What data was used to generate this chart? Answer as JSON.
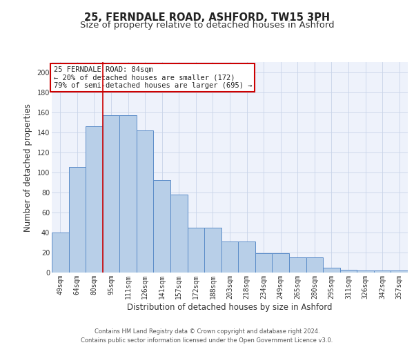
{
  "title1": "25, FERNDALE ROAD, ASHFORD, TW15 3PH",
  "title2": "Size of property relative to detached houses in Ashford",
  "xlabel": "Distribution of detached houses by size in Ashford",
  "ylabel": "Number of detached properties",
  "categories": [
    "49sqm",
    "64sqm",
    "80sqm",
    "95sqm",
    "111sqm",
    "126sqm",
    "141sqm",
    "157sqm",
    "172sqm",
    "188sqm",
    "203sqm",
    "218sqm",
    "234sqm",
    "249sqm",
    "265sqm",
    "280sqm",
    "295sqm",
    "311sqm",
    "326sqm",
    "342sqm",
    "357sqm"
  ],
  "values": [
    40,
    105,
    146,
    157,
    157,
    142,
    92,
    78,
    45,
    45,
    31,
    31,
    19,
    19,
    15,
    15,
    5,
    3,
    2,
    2,
    2
  ],
  "bar_color": "#b8cfe8",
  "bar_edge_color": "#5b8cc8",
  "background_color": "#eef2fb",
  "annotation_box_text": "25 FERNDALE ROAD: 84sqm\n← 20% of detached houses are smaller (172)\n79% of semi-detached houses are larger (695) →",
  "annotation_box_color": "#ffffff",
  "annotation_box_edge": "#cc0000",
  "vline_x": 2.5,
  "vline_color": "#cc0000",
  "ylim": [
    0,
    210
  ],
  "yticks": [
    0,
    20,
    40,
    60,
    80,
    100,
    120,
    140,
    160,
    180,
    200
  ],
  "footer": "Contains HM Land Registry data © Crown copyright and database right 2024.\nContains public sector information licensed under the Open Government Licence v3.0.",
  "title_fontsize": 10.5,
  "subtitle_fontsize": 9.5,
  "ylabel_fontsize": 8.5,
  "xlabel_fontsize": 8.5,
  "tick_fontsize": 7,
  "footer_fontsize": 6,
  "ann_fontsize": 7.5
}
